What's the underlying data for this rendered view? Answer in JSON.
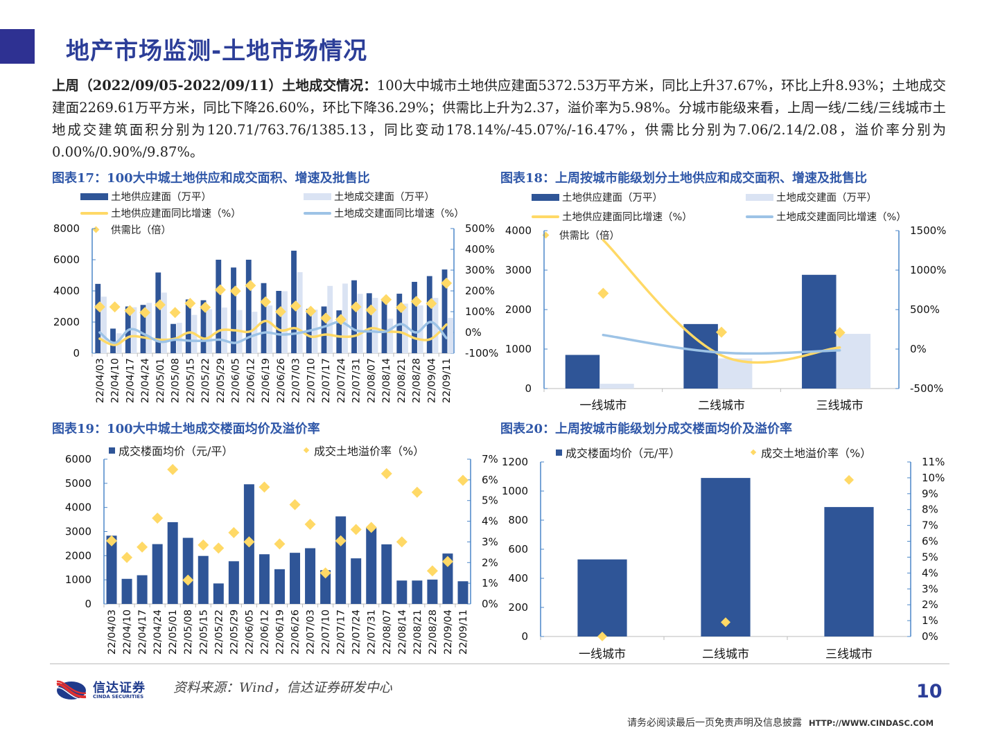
{
  "header": {
    "title": "地产市场监测-土地市场情况"
  },
  "summary": {
    "lead": "上周（2022/09/05-2022/09/11）土地成交情况：",
    "body": "100大中城市土地供应建面5372.53万平方米，同比上升37.67%，环比上升8.93%；土地成交建面2269.61万平方米，同比下降26.60%，环比下降36.29%；供需比上升为2.37，溢价率为5.98%。分城市能级来看，上周一线/二线/三线城市土地成交建筑面积分别为120.71/763.76/1385.13，同比变动178.14%/-45.07%/-16.47%，供需比分别为7.06/2.14/2.08，溢价率分别为0.00%/0.90%/9.87%。"
  },
  "colors": {
    "supply_bar": "#2f5597",
    "deal_bar": "#dae3f3",
    "supply_line": "#ffd966",
    "deal_line": "#9dc3e6",
    "diamond": "#ffd966",
    "title_blue": "#2c3e98"
  },
  "chart_data": [
    {
      "id": "fig17",
      "type": "bar+line",
      "title": "图表17：100大中城土地供应和成交面积、增速及批售比",
      "legend": [
        "土地供应建面（万平）",
        "土地成交建面（万平）",
        "土地供应建面同比增速（%）",
        "土地成交建面同比增速（%）",
        "供需比（倍）"
      ],
      "categories": [
        "22/04/03",
        "22/04/10",
        "22/04/17",
        "22/04/24",
        "22/05/01",
        "22/05/08",
        "22/05/15",
        "22/05/22",
        "22/05/29",
        "22/06/05",
        "22/06/12",
        "22/06/19",
        "22/06/26",
        "22/07/03",
        "22/07/10",
        "22/07/17",
        "22/07/24",
        "22/07/31",
        "22/08/07",
        "22/08/14",
        "22/08/21",
        "22/08/28",
        "22/09/04",
        "22/09/11"
      ],
      "y_left": {
        "ticks": [
          "0",
          "2000",
          "4000",
          "6000",
          "8000"
        ],
        "ylim": [
          0,
          8000
        ]
      },
      "y_right": {
        "ticks": [
          "-100%",
          "0%",
          "100%",
          "200%",
          "300%",
          "400%",
          "500%"
        ],
        "ylim": [
          -100,
          500
        ]
      },
      "series": [
        {
          "name": "土地供应建面（万平）",
          "type": "bar",
          "axis": "left",
          "values": [
            4450,
            1580,
            3000,
            3100,
            5180,
            1880,
            3450,
            3400,
            6000,
            5500,
            6000,
            4500,
            4000,
            6580,
            2850,
            3000,
            2750,
            4680,
            3850,
            3500,
            3820,
            4580,
            4950,
            5373
          ]
        },
        {
          "name": "土地成交建面（万平）",
          "type": "bar",
          "axis": "left",
          "values": [
            3630,
            1280,
            2950,
            3230,
            3890,
            1950,
            2460,
            2820,
            2930,
            2770,
            2660,
            3060,
            3980,
            5200,
            2800,
            4320,
            4470,
            3810,
            3550,
            2220,
            3180,
            3070,
            3550,
            2270
          ]
        },
        {
          "name": "土地供应建面同比增速（%）",
          "type": "line",
          "axis": "right",
          "values": [
            -30,
            -60,
            -20,
            -25,
            -35,
            -30,
            0,
            -30,
            10,
            10,
            5,
            55,
            10,
            20,
            -20,
            -10,
            -20,
            -15,
            20,
            5,
            0,
            -30,
            -30,
            38
          ]
        },
        {
          "name": "土地成交建面同比增速（%）",
          "type": "line",
          "axis": "right",
          "values": [
            0,
            -50,
            15,
            -10,
            -45,
            -35,
            -40,
            -40,
            -35,
            -50,
            -20,
            0,
            -10,
            -5,
            10,
            30,
            50,
            10,
            5,
            5,
            40,
            0,
            50,
            -27
          ]
        },
        {
          "name": "供需比（倍）",
          "type": "scatter",
          "axis": "right",
          "values": [
            1.23,
            1.23,
            1.05,
            0.96,
            1.33,
            0.96,
            1.4,
            1.21,
            2.05,
            1.99,
            2.26,
            1.47,
            1.0,
            1.27,
            1.02,
            0.69,
            0.62,
            1.23,
            1.08,
            1.58,
            1.2,
            1.49,
            1.39,
            2.37
          ]
        }
      ]
    },
    {
      "id": "fig18",
      "type": "bar+line",
      "title": "图表18：上周按城市能级划分土地供应和成交面积、增速及批售比",
      "legend": [
        "土地供应建面（万平）",
        "土地成交建面（万平）",
        "土地供应建面同比增速（%）",
        "土地成交建面同比增速（%）",
        "供需比（倍）"
      ],
      "categories": [
        "一线城市",
        "二线城市",
        "三线城市"
      ],
      "y_left": {
        "ticks": [
          "0",
          "1000",
          "2000",
          "3000",
          "4000"
        ],
        "ylim": [
          0,
          4000
        ]
      },
      "y_right": {
        "ticks": [
          "-500%",
          "0%",
          "500%",
          "1000%",
          "1500%"
        ],
        "ylim": [
          -500,
          1500
        ]
      },
      "series": [
        {
          "name": "土地供应建面（万平）",
          "type": "bar",
          "axis": "left",
          "values": [
            852,
            1634,
            2881
          ]
        },
        {
          "name": "土地成交建面（万平）",
          "type": "bar",
          "axis": "left",
          "values": [
            120.71,
            763.76,
            1385.13
          ]
        },
        {
          "name": "土地供应建面同比增速（%）",
          "type": "line",
          "axis": "right",
          "values": [
            1380,
            -80,
            20
          ]
        },
        {
          "name": "土地成交建面同比增速（%）",
          "type": "line",
          "axis": "right",
          "values": [
            178.14,
            -45.07,
            -16.47
          ]
        },
        {
          "name": "供需比（倍）",
          "type": "scatter",
          "axis": "right",
          "values": [
            7.06,
            2.14,
            2.08
          ]
        }
      ]
    },
    {
      "id": "fig19",
      "type": "bar+scatter",
      "title": "图表19：100大中城土地成交楼面均价及溢价率",
      "legend": [
        "成交楼面均价（元/平）",
        "成交土地溢价率（%）"
      ],
      "categories": [
        "22/04/03",
        "22/04/10",
        "22/04/17",
        "22/04/24",
        "22/05/01",
        "22/05/08",
        "22/05/15",
        "22/05/22",
        "22/05/29",
        "22/06/05",
        "22/06/12",
        "22/06/19",
        "22/06/26",
        "22/07/03",
        "22/07/10",
        "22/07/17",
        "22/07/24",
        "22/07/31",
        "22/08/07",
        "22/08/14",
        "22/08/21",
        "22/08/28",
        "22/09/04",
        "22/09/11"
      ],
      "y_left": {
        "ticks": [
          "0",
          "1000",
          "2000",
          "3000",
          "4000",
          "5000",
          "6000"
        ],
        "ylim": [
          0,
          6000
        ]
      },
      "y_right": {
        "ticks": [
          "0%",
          "1%",
          "2%",
          "3%",
          "4%",
          "5%",
          "6%",
          "7%"
        ],
        "ylim": [
          0,
          7
        ]
      },
      "series": [
        {
          "name": "成交楼面均价（元/平）",
          "type": "bar",
          "axis": "left",
          "values": [
            2830,
            1040,
            1190,
            2480,
            3390,
            2740,
            1990,
            850,
            1770,
            4960,
            2060,
            1440,
            2120,
            2310,
            1400,
            3630,
            1890,
            3170,
            2470,
            970,
            970,
            1010,
            2090,
            940
          ]
        },
        {
          "name": "成交土地溢价率（%）",
          "type": "scatter",
          "axis": "right",
          "values": [
            3.05,
            2.25,
            2.75,
            4.15,
            6.5,
            1.15,
            2.85,
            2.7,
            3.45,
            3.0,
            5.65,
            2.9,
            4.8,
            3.85,
            1.5,
            3.05,
            3.6,
            3.7,
            6.3,
            3.0,
            5.4,
            1.6,
            2.05,
            5.98
          ]
        }
      ]
    },
    {
      "id": "fig20",
      "type": "bar+scatter",
      "title": "图表20：上周按城市能级划分成交楼面均价及溢价率",
      "legend": [
        "成交楼面均价（元/平）",
        "成交土地溢价率（%）"
      ],
      "categories": [
        "一线城市",
        "二线城市",
        "三线城市"
      ],
      "y_left": {
        "ticks": [
          "0",
          "200",
          "400",
          "600",
          "800",
          "1000",
          "1200"
        ],
        "ylim": [
          0,
          1200
        ]
      },
      "y_right": {
        "ticks": [
          "0%",
          "1%",
          "2%",
          "3%",
          "4%",
          "5%",
          "6%",
          "7%",
          "8%",
          "9%",
          "10%",
          "11%"
        ],
        "ylim": [
          0,
          11
        ]
      },
      "series": [
        {
          "name": "成交楼面均价（元/平）",
          "type": "bar",
          "axis": "left",
          "values": [
            530,
            1090,
            890
          ]
        },
        {
          "name": "成交土地溢价率（%）",
          "type": "scatter",
          "axis": "right",
          "values": [
            0.0,
            0.9,
            9.87
          ]
        }
      ]
    }
  ],
  "footer": {
    "source": "资料来源：Wind，信达证券研发中心",
    "logo_cn": "信达证券",
    "logo_en": "CINDA SECURITIES",
    "page_number": "10",
    "disclaimer": "请务必阅读最后一页免责声明及信息披露",
    "url": "HTTP://WWW.CINDASC.COM"
  }
}
